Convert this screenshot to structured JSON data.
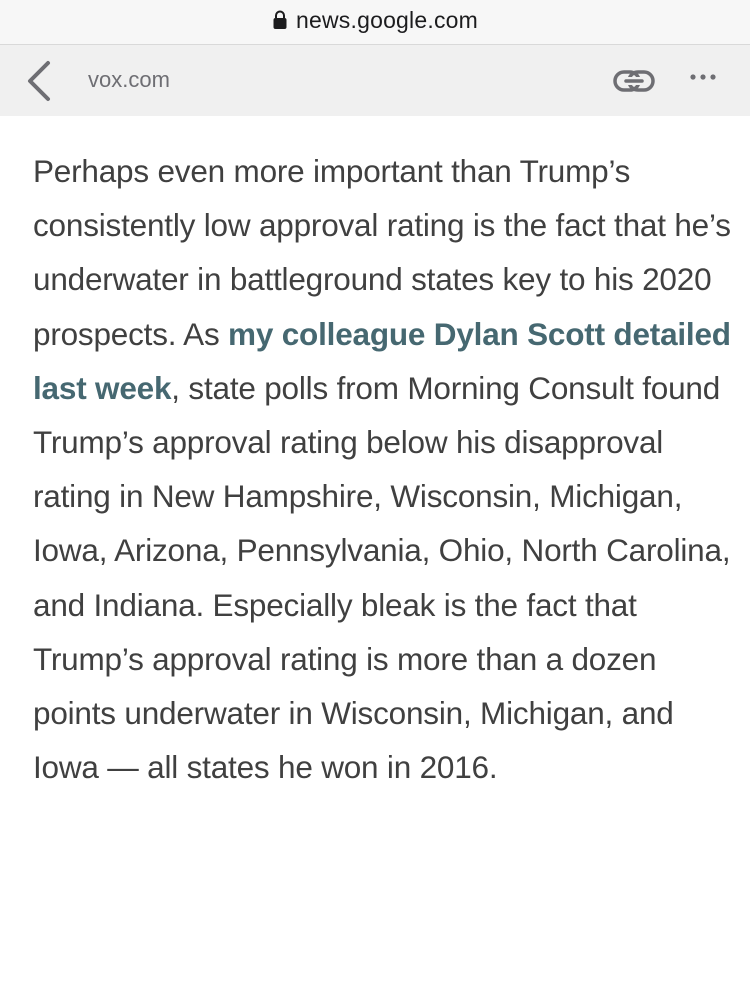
{
  "browser": {
    "url": "news.google.com"
  },
  "amp_header": {
    "domain": "vox.com"
  },
  "article": {
    "text_before_link": "Perhaps even more important than Trump’s consistently low approval rating is the fact that he’s underwater in battleground states key to his 2020 prospects. As ",
    "link_text": "my colleague Dylan Scott detailed last week",
    "text_after_link": ", state polls from Morning Consult found Trump’s approval rating below his disapproval rating in New Hampshire, Wisconsin, Michigan, Iowa, Arizona, Pennsylvania, Ohio, North Carolina, and Indiana. Especially bleak is the fact that Trump’s approval rating is more than a dozen points underwater in Wisconsin, Michigan, and Iowa — all states he won in 2016."
  },
  "colors": {
    "link": "#466871",
    "body_text": "#404040",
    "header_bg": "#f0f0f0",
    "icon": "#6e6e73"
  }
}
